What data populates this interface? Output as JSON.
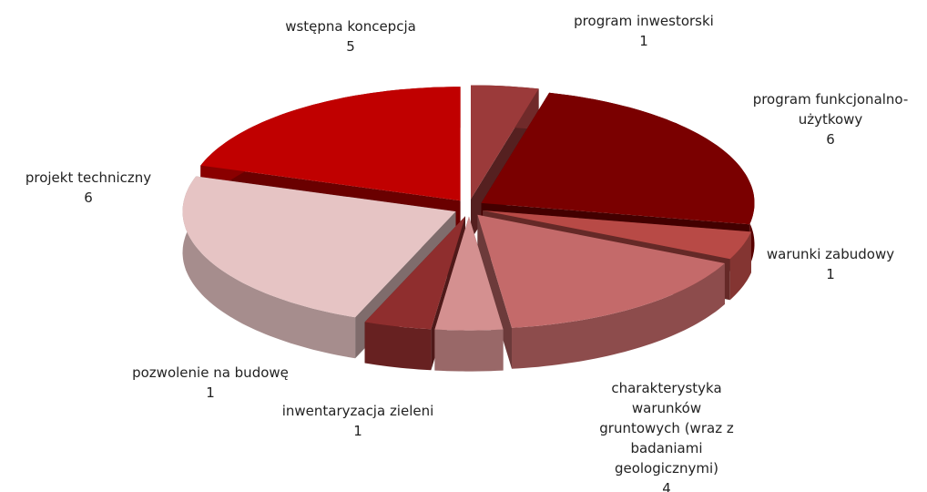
{
  "chart_data": {
    "type": "pie3d",
    "categories": [
      "program inwestorski",
      "program funkcjonalno-użytkowy",
      "warunki zabudowy",
      "charakterystyka warunków gruntowych (wraz z badaniami geologicznymi)",
      "inwentaryzacja zieleni",
      "pozwolenie na budowę",
      "projekt techniczny",
      "wstępna koncepcja"
    ],
    "values": [
      1,
      6,
      1,
      4,
      1,
      1,
      6,
      5
    ],
    "colors": [
      "#9b3a3a",
      "#7a0000",
      "#b84a46",
      "#c46a6a",
      "#d49090",
      "#8f2e2e",
      "#e6c4c4",
      "#c00000"
    ]
  }
}
